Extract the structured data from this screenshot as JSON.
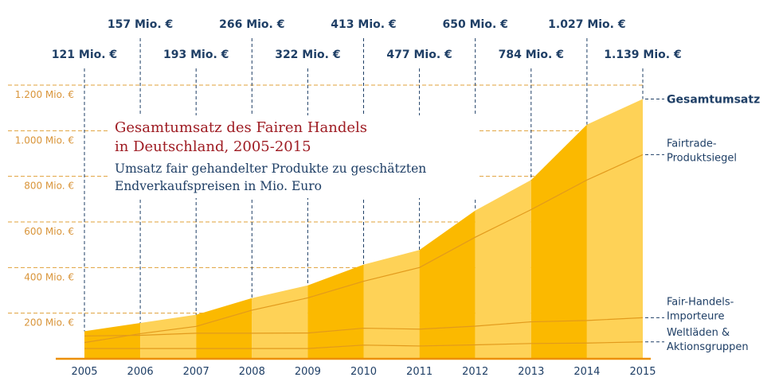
{
  "chart_data": {
    "type": "area",
    "title": "Gesamtumsatz des Fairen Handels in Deutschland, 2005-2015",
    "title_lines": [
      "Gesamtumsatz des Fairen Handels",
      "in Deutschland, 2005-2015"
    ],
    "subtitle_lines": [
      "Umsatz fair gehandelter Produkte zu geschätzten",
      "Endverkaufspreisen in Mio. Euro"
    ],
    "xlabel": "",
    "ylabel": "",
    "x": [
      "2005",
      "2006",
      "2007",
      "2008",
      "2009",
      "2010",
      "2011",
      "2012",
      "2013",
      "2014",
      "2015"
    ],
    "ylim": [
      0,
      1200
    ],
    "yticks": [
      200,
      400,
      600,
      800,
      1000,
      1200
    ],
    "ytick_labels": [
      "200 Mio. €",
      "400 Mio. €",
      "600 Mio. €",
      "800 Mio. €",
      "1.000 Mio. €",
      "1.200 Mio. €"
    ],
    "grid": "horizontal dashed",
    "series": [
      {
        "name": "Gesamtumsatz",
        "kind": "area",
        "values": [
          121,
          157,
          193,
          266,
          322,
          413,
          477,
          650,
          784,
          1027,
          1139
        ]
      },
      {
        "name": "Fairtrade-Produktsiegel",
        "kind": "line",
        "values": [
          71,
          110,
          142,
          213,
          267,
          340,
          400,
          533,
          654,
          784,
          895
        ]
      },
      {
        "name": "Fair-Handels-Importeure",
        "kind": "line",
        "values": [
          100,
          103,
          112,
          112,
          113,
          134,
          130,
          143,
          162,
          168,
          180
        ]
      },
      {
        "name": "Weltläden & Aktionsgruppen",
        "kind": "line",
        "values": [
          45,
          45,
          45,
          45,
          45,
          60,
          56,
          61,
          67,
          69,
          74
        ]
      }
    ],
    "value_labels": [
      "121 Mio. €",
      "157 Mio. €",
      "193 Mio. €",
      "266 Mio. €",
      "322 Mio. €",
      "413 Mio. €",
      "477 Mio. €",
      "650 Mio. €",
      "784 Mio. €",
      "1.027 Mio. €",
      "1.139 Mio. €"
    ],
    "legend": [
      {
        "lines": [
          "Gesamtumsatz"
        ],
        "series": "Gesamtumsatz",
        "bold": true
      },
      {
        "lines": [
          "Fairtrade-",
          "Produktsiegel"
        ],
        "series": "Fairtrade-Produktsiegel",
        "bold": false
      },
      {
        "lines": [
          "Fair-Handels-",
          "Importeure"
        ],
        "series": "Fair-Handels-Importeure",
        "bold": false
      },
      {
        "lines": [
          "Weltläden &",
          "Aktionsgruppen"
        ],
        "series": "Weltläden & Aktionsgruppen",
        "bold": false
      }
    ],
    "legend_placement": "right",
    "colors": {
      "band_dark": "#fbb900",
      "band_light": "#fed257",
      "series_line": "#e29a1c",
      "baseline": "#ec8f00",
      "gridline": "#e0a03a",
      "ytick_text": "#d9953a",
      "text_dark": "#1f3f66",
      "title": "#9e1b22"
    }
  }
}
